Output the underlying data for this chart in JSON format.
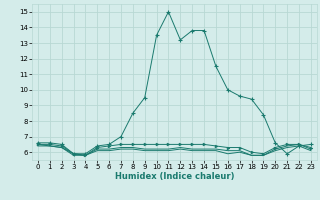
{
  "xlabel": "Humidex (Indice chaleur)",
  "bg_color": "#d4ecea",
  "grid_color": "#b8d8d4",
  "line_color": "#1a7a6e",
  "xlim": [
    -0.5,
    23.5
  ],
  "ylim": [
    5.5,
    15.5
  ],
  "yticks": [
    6,
    7,
    8,
    9,
    10,
    11,
    12,
    13,
    14,
    15
  ],
  "xticks": [
    0,
    1,
    2,
    3,
    4,
    5,
    6,
    7,
    8,
    9,
    10,
    11,
    12,
    13,
    14,
    15,
    16,
    17,
    18,
    19,
    20,
    21,
    22,
    23
  ],
  "series1_x": [
    0,
    1,
    2,
    3,
    4,
    5,
    6,
    7,
    8,
    9,
    10,
    11,
    12,
    13,
    14,
    15,
    16,
    17,
    18,
    19,
    20,
    21,
    22,
    23
  ],
  "series1_y": [
    6.6,
    6.6,
    6.5,
    5.9,
    5.9,
    6.4,
    6.5,
    7.0,
    8.5,
    9.5,
    13.5,
    15.0,
    13.2,
    13.8,
    13.8,
    11.5,
    10.0,
    9.6,
    9.4,
    8.4,
    6.6,
    5.9,
    6.4,
    6.5
  ],
  "series2_x": [
    0,
    1,
    2,
    3,
    4,
    5,
    6,
    7,
    8,
    9,
    10,
    11,
    12,
    13,
    14,
    15,
    16,
    17,
    18,
    19,
    20,
    21,
    22,
    23
  ],
  "series2_y": [
    6.5,
    6.5,
    6.4,
    5.9,
    5.8,
    6.3,
    6.4,
    6.5,
    6.5,
    6.5,
    6.5,
    6.5,
    6.5,
    6.5,
    6.5,
    6.4,
    6.3,
    6.3,
    6.0,
    5.9,
    6.3,
    6.5,
    6.5,
    6.3
  ],
  "series3_x": [
    0,
    1,
    2,
    3,
    4,
    5,
    6,
    7,
    8,
    9,
    10,
    11,
    12,
    13,
    14,
    15,
    16,
    17,
    18,
    19,
    20,
    21,
    22,
    23
  ],
  "series3_y": [
    6.5,
    6.4,
    6.3,
    5.9,
    5.8,
    6.2,
    6.2,
    6.3,
    6.3,
    6.2,
    6.2,
    6.2,
    6.3,
    6.2,
    6.2,
    6.2,
    6.1,
    6.1,
    5.8,
    5.8,
    6.2,
    6.4,
    6.5,
    6.2
  ],
  "series4_x": [
    0,
    1,
    2,
    3,
    4,
    5,
    6,
    7,
    8,
    9,
    10,
    11,
    12,
    13,
    14,
    15,
    16,
    17,
    18,
    19,
    20,
    21,
    22,
    23
  ],
  "series4_y": [
    6.4,
    6.4,
    6.3,
    5.8,
    5.8,
    6.1,
    6.1,
    6.2,
    6.2,
    6.1,
    6.1,
    6.1,
    6.2,
    6.1,
    6.1,
    6.1,
    5.9,
    6.0,
    5.8,
    5.8,
    6.1,
    6.3,
    6.4,
    6.1
  ]
}
